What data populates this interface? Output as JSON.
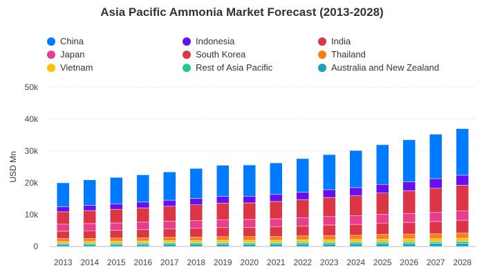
{
  "chart_data": {
    "type": "bar",
    "stacked": true,
    "title": "Asia Pacific Ammonia Market Forecast (2013-2028)",
    "xlabel": "",
    "ylabel": "USD Mn",
    "ylim": [
      0,
      50000
    ],
    "yticks": [
      0,
      10000,
      20000,
      30000,
      40000,
      50000
    ],
    "ytick_labels": [
      "0",
      "10k",
      "20k",
      "30k",
      "40k",
      "50k"
    ],
    "grid": true,
    "legend_position": "top",
    "categories": [
      "2013",
      "2014",
      "2015",
      "2016",
      "2017",
      "2018",
      "2019",
      "2020",
      "2021",
      "2022",
      "2023",
      "2024",
      "2025",
      "2026",
      "2027",
      "2028"
    ],
    "series": [
      {
        "name": "Australia and New Zealand",
        "color": "#17a2b8",
        "values": [
          600,
          600,
          650,
          650,
          700,
          700,
          750,
          750,
          750,
          800,
          800,
          850,
          900,
          900,
          950,
          1000
        ]
      },
      {
        "name": "Rest of Asia Pacific",
        "color": "#20c997",
        "values": [
          400,
          400,
          400,
          450,
          450,
          450,
          450,
          450,
          450,
          500,
          500,
          500,
          550,
          550,
          550,
          600
        ]
      },
      {
        "name": "Vietnam",
        "color": "#ffc107",
        "values": [
          600,
          600,
          650,
          650,
          700,
          700,
          750,
          750,
          750,
          800,
          850,
          850,
          900,
          950,
          950,
          1000
        ]
      },
      {
        "name": "Thailand",
        "color": "#fd7e14",
        "values": [
          900,
          950,
          950,
          1000,
          1050,
          1100,
          1150,
          1150,
          1200,
          1250,
          1300,
          1350,
          1450,
          1500,
          1550,
          1650
        ]
      },
      {
        "name": "South Korea",
        "color": "#dc3545",
        "values": [
          2300,
          2400,
          2450,
          2550,
          2650,
          2750,
          2850,
          2900,
          3000,
          3100,
          3300,
          3400,
          3550,
          3700,
          3850,
          4000
        ]
      },
      {
        "name": "Japan",
        "color": "#e83e8c",
        "values": [
          2200,
          2250,
          2300,
          2350,
          2400,
          2450,
          2500,
          2500,
          2550,
          2600,
          2650,
          2700,
          2750,
          2800,
          2850,
          2900
        ]
      },
      {
        "name": "India",
        "color": "#dc3545",
        "values": [
          3900,
          4100,
          4300,
          4500,
          4700,
          4950,
          5200,
          5200,
          5450,
          5700,
          6000,
          6300,
          6700,
          7100,
          7600,
          8100
        ]
      },
      {
        "name": "Indonesia",
        "color": "#6610f2",
        "values": [
          1600,
          1650,
          1700,
          1800,
          1900,
          2000,
          2100,
          2100,
          2200,
          2300,
          2450,
          2550,
          2700,
          2850,
          3000,
          3150
        ]
      },
      {
        "name": "China",
        "color": "#007bff",
        "values": [
          7500,
          8000,
          8300,
          8550,
          8850,
          9400,
          9750,
          9800,
          9900,
          10550,
          11000,
          11650,
          12450,
          13150,
          13950,
          14600
        ]
      }
    ]
  },
  "legend": {
    "items": [
      {
        "label": "China",
        "color": "#007bff"
      },
      {
        "label": "Indonesia",
        "color": "#6610f2"
      },
      {
        "label": "India",
        "color": "#dc3545"
      },
      {
        "label": "Japan",
        "color": "#e83e8c"
      },
      {
        "label": "South Korea",
        "color": "#dc3545"
      },
      {
        "label": "Thailand",
        "color": "#fd7e14"
      },
      {
        "label": "Vietnam",
        "color": "#ffc107"
      },
      {
        "label": "Rest of Asia Pacific",
        "color": "#20c997"
      },
      {
        "label": "Australia and New Zealand",
        "color": "#17a2b8"
      }
    ]
  }
}
